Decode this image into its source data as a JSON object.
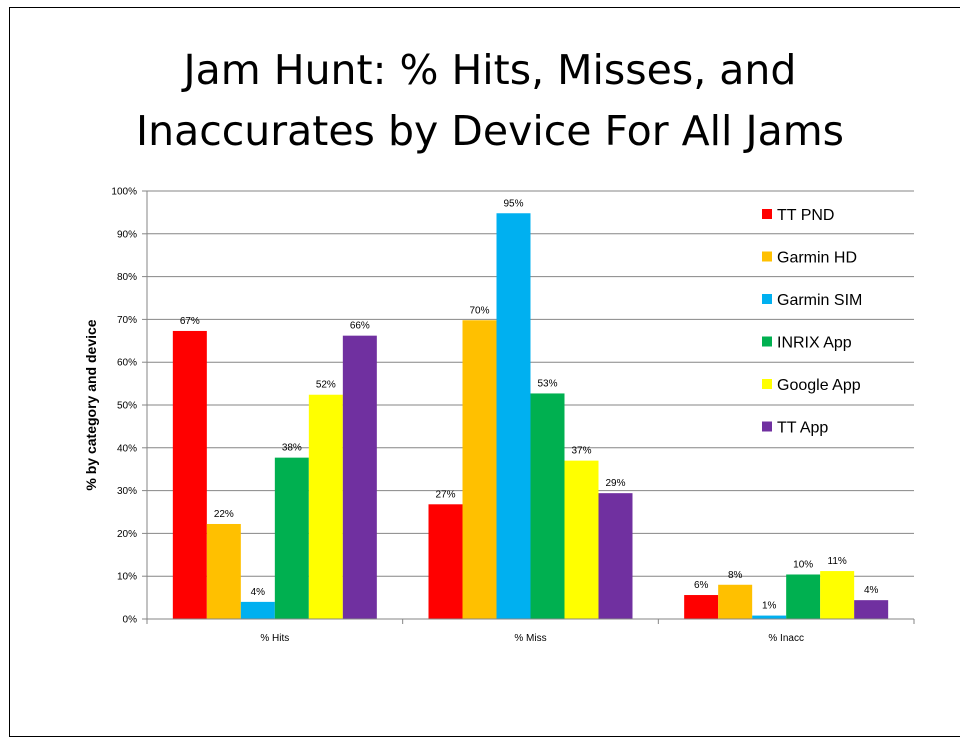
{
  "chart_data": {
    "type": "bar",
    "title_line1": "Jam Hunt: % Hits, Misses, and",
    "title_line2": "Inaccurates by Device For All Jams",
    "ylabel": "% by category and device",
    "xlabel": "",
    "ylim": [
      0,
      100
    ],
    "yticks": [
      "0%",
      "10%",
      "20%",
      "30%",
      "40%",
      "50%",
      "60%",
      "70%",
      "80%",
      "90%",
      "100%"
    ],
    "grid": true,
    "legend_position": "top-right",
    "categories": [
      "% Hits",
      "% Miss",
      "% Inacc"
    ],
    "series": [
      {
        "name": "TT PND",
        "color": "#ff0000",
        "values": [
          67,
          27,
          6
        ],
        "labels": [
          "67%",
          "27%",
          "6%"
        ]
      },
      {
        "name": "Garmin HD",
        "color": "#ffc000",
        "values": [
          22,
          70,
          8
        ],
        "labels": [
          "22%",
          "70%",
          "8%"
        ]
      },
      {
        "name": "Garmin SIM",
        "color": "#00b0f0",
        "values": [
          4,
          95,
          1
        ],
        "labels": [
          "4%",
          "95%",
          "1%"
        ]
      },
      {
        "name": "INRIX App",
        "color": "#00b050",
        "values": [
          38,
          53,
          10
        ],
        "labels": [
          "38%",
          "53%",
          "10%"
        ]
      },
      {
        "name": "Google App",
        "color": "#ffff00",
        "values": [
          52,
          37,
          11
        ],
        "labels": [
          "52%",
          "37%",
          "11%"
        ]
      },
      {
        "name": "TT App",
        "color": "#7030a0",
        "values": [
          66,
          29,
          4
        ],
        "labels": [
          "66%",
          "29%",
          "4%"
        ]
      }
    ],
    "plot_values_precise": [
      [
        67.3,
        26.8,
        5.6
      ],
      [
        22.2,
        69.8,
        8.0
      ],
      [
        4.0,
        94.8,
        0.8
      ],
      [
        37.7,
        52.7,
        10.4
      ],
      [
        52.4,
        37.0,
        11.2
      ],
      [
        66.2,
        29.4,
        4.4
      ]
    ]
  }
}
